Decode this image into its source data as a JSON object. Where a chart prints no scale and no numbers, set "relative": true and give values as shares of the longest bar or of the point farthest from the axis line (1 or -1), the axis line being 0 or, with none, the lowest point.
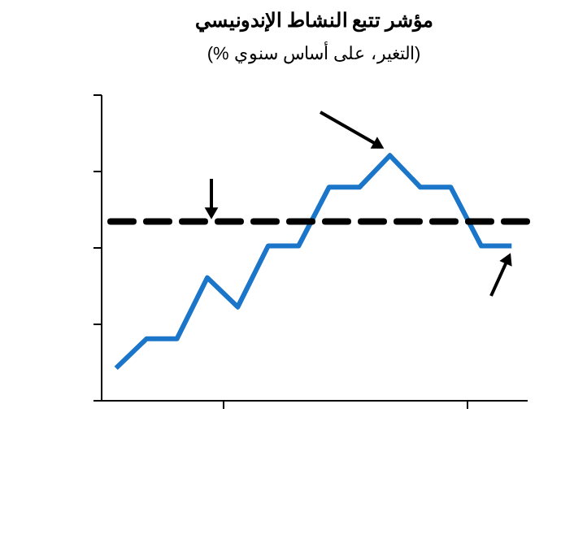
{
  "chart_data": {
    "type": "line",
    "title": "مؤشر تتبع النشاط الإندونيسي",
    "subtitle": "(% التغير، على أساس سنوي)",
    "categories": [
      null,
      null,
      null,
      null,
      null,
      null,
      null,
      null,
      null,
      null,
      null,
      null,
      null,
      null
    ],
    "relative": true,
    "series": [
      {
        "color": "#1b75c9",
        "values": [
          0.13,
          0.25,
          0.25,
          0.5,
          0.38,
          0.63,
          0.63,
          0.87,
          0.87,
          1,
          0.87,
          0.87,
          0.63,
          0.63
        ]
      }
    ],
    "ref_lines": [
      {
        "axis": "y",
        "value": 0.73,
        "color": "#000000",
        "line_style": "dashed"
      }
    ],
    "grid": false,
    "marker": "none",
    "line_style": "solid"
  }
}
